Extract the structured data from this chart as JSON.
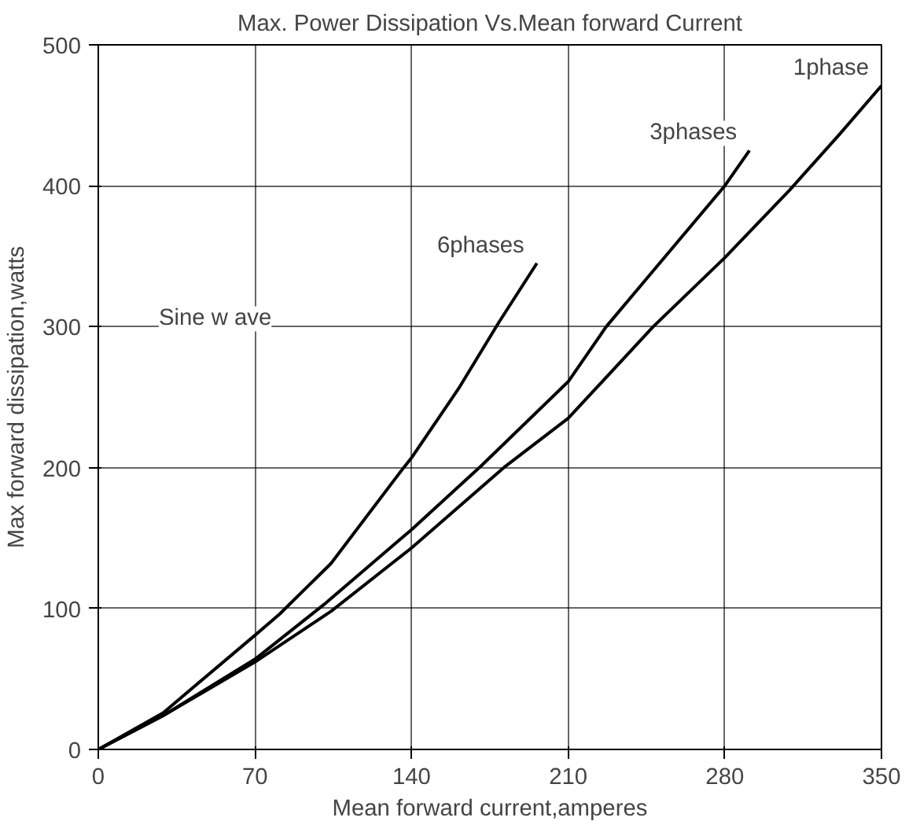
{
  "chart_data": {
    "type": "line",
    "title": "Max. Power Dissipation Vs.Mean forward Current",
    "xlabel": "Mean forward current,amperes",
    "ylabel": "Max forward dissipation,watts",
    "xlim": [
      0,
      350
    ],
    "ylim": [
      0,
      500
    ],
    "xticks": [
      0,
      70,
      140,
      210,
      280,
      350
    ],
    "yticks": [
      0,
      100,
      200,
      300,
      400,
      500
    ],
    "grid": true,
    "legend": false,
    "series": [
      {
        "name": "6phases",
        "color": "#000000",
        "x": [
          0,
          29,
          70,
          81,
          104,
          136,
          140,
          161,
          179,
          196
        ],
        "values": [
          0,
          26,
          81,
          96,
          132,
          199,
          207,
          256,
          303,
          345
        ]
      },
      {
        "name": "3phases",
        "color": "#000000",
        "x": [
          0,
          29,
          70,
          101,
          140,
          171,
          210,
          227,
          245,
          280,
          291
        ],
        "values": [
          0,
          24,
          64,
          103,
          156,
          201,
          261,
          300,
          334,
          400,
          425
        ]
      },
      {
        "name": "1phase",
        "color": "#000000",
        "x": [
          0,
          29,
          70,
          104,
          140,
          182,
          210,
          248,
          280,
          309,
          331,
          350
        ],
        "values": [
          0,
          24,
          62,
          98,
          143,
          201,
          235,
          300,
          349,
          397,
          436,
          471
        ]
      }
    ],
    "annotations": [
      "Sine w ave"
    ]
  }
}
